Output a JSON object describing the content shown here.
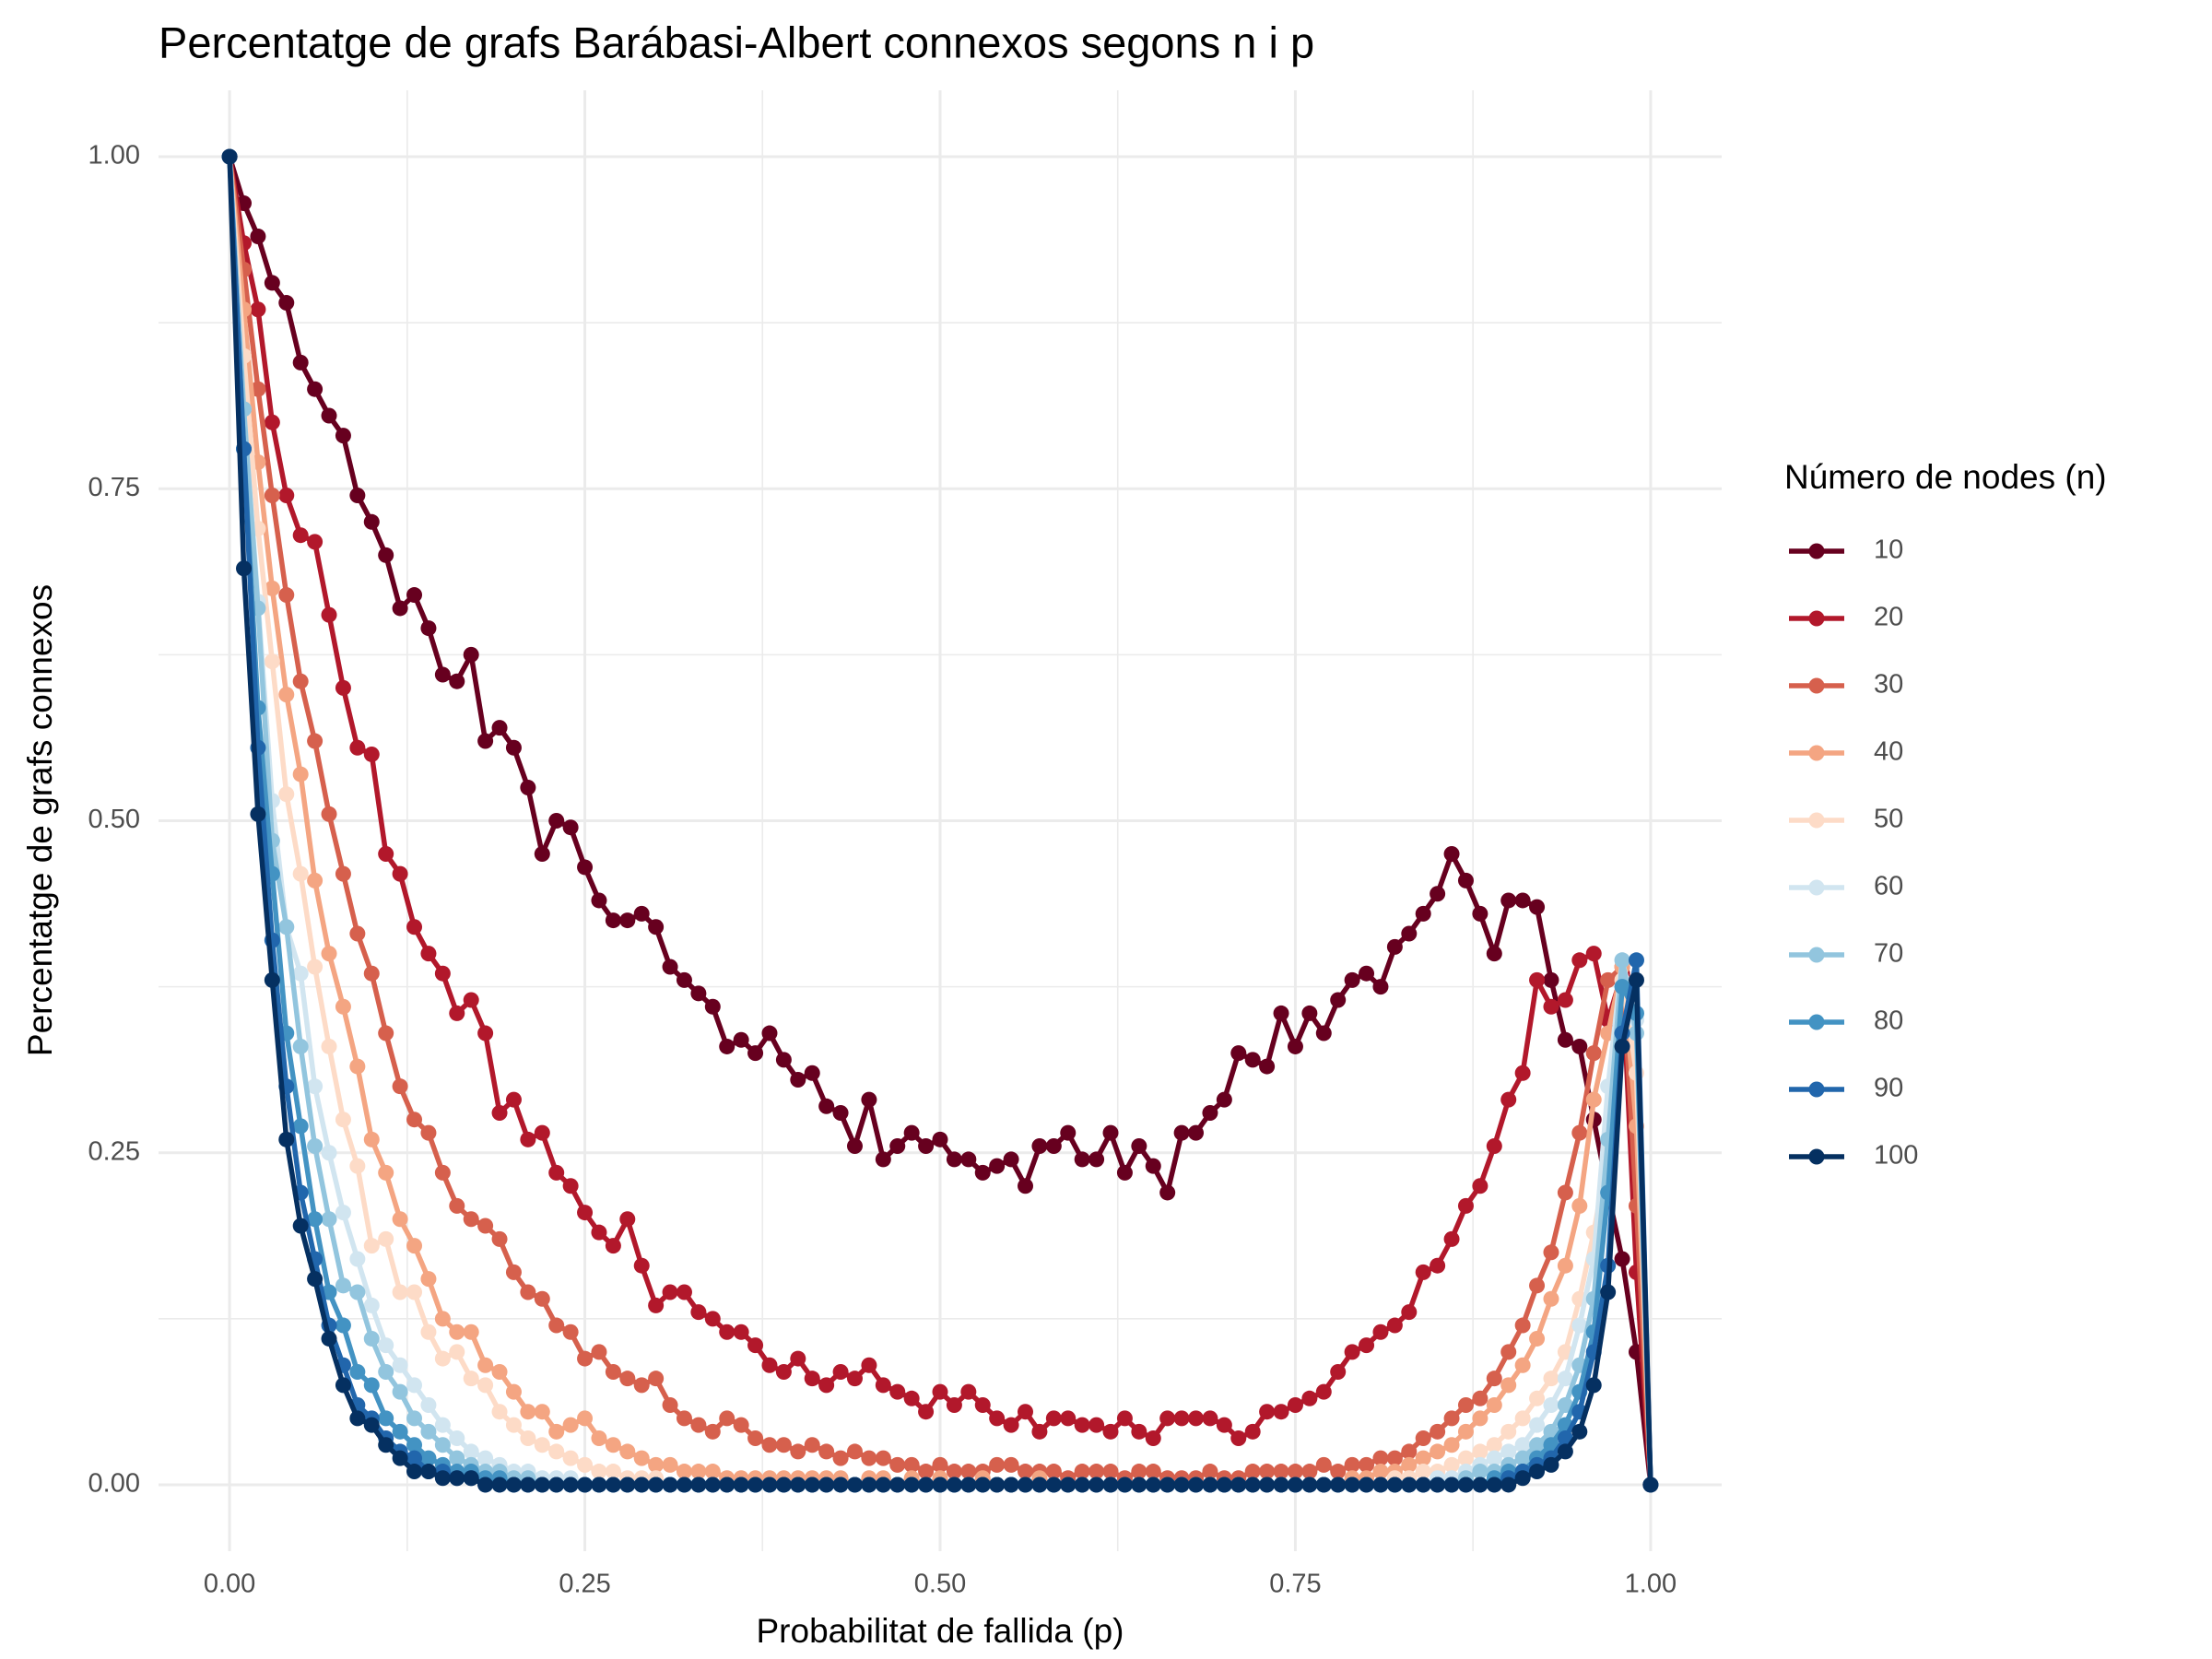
{
  "chart_data": {
    "type": "line",
    "title": "Percentatge de grafs Barábasi-Albert connexos segons n i p",
    "x_label": "Probabilitat de fallida (p)",
    "y_label": "Percentatge de grafs connexos",
    "legend_title": "Número de nodes (n)",
    "legend_position": "right",
    "grid": true,
    "xlim": [
      -0.05,
      1.05
    ],
    "ylim": [
      -0.05,
      1.05
    ],
    "xticks": [
      {
        "value": 0,
        "label": "0.00"
      },
      {
        "value": 0.25,
        "label": "0.25"
      },
      {
        "value": 0.5,
        "label": "0.50"
      },
      {
        "value": 0.75,
        "label": "0.75"
      },
      {
        "value": 1,
        "label": "1.00"
      }
    ],
    "yticks": [
      {
        "value": 0,
        "label": "0.00"
      },
      {
        "value": 0.25,
        "label": "0.25"
      },
      {
        "value": 0.5,
        "label": "0.50"
      },
      {
        "value": 0.75,
        "label": "0.75"
      },
      {
        "value": 1,
        "label": "1.00"
      }
    ],
    "xminor": [
      0.125,
      0.375,
      0.625,
      0.875
    ],
    "yminor": [
      0.125,
      0.375,
      0.625,
      0.875
    ],
    "x": [
      0,
      0.01,
      0.02,
      0.03,
      0.04,
      0.05,
      0.06,
      0.07,
      0.08,
      0.09,
      0.1,
      0.11,
      0.12,
      0.13,
      0.14,
      0.15,
      0.16,
      0.17,
      0.18,
      0.19,
      0.2,
      0.21,
      0.22,
      0.23,
      0.24,
      0.25,
      0.26,
      0.27,
      0.28,
      0.29,
      0.3,
      0.31,
      0.32,
      0.33,
      0.34,
      0.35,
      0.36,
      0.37,
      0.38,
      0.39,
      0.4,
      0.41,
      0.42,
      0.43,
      0.44,
      0.45,
      0.46,
      0.47,
      0.48,
      0.49,
      0.5,
      0.51,
      0.52,
      0.53,
      0.54,
      0.55,
      0.56,
      0.57,
      0.58,
      0.59,
      0.6,
      0.61,
      0.62,
      0.63,
      0.64,
      0.65,
      0.66,
      0.67,
      0.68,
      0.69,
      0.7,
      0.71,
      0.72,
      0.73,
      0.74,
      0.75,
      0.76,
      0.77,
      0.78,
      0.79,
      0.8,
      0.81,
      0.82,
      0.83,
      0.84,
      0.85,
      0.86,
      0.87,
      0.88,
      0.89,
      0.9,
      0.91,
      0.92,
      0.93,
      0.94,
      0.95,
      0.96,
      0.97,
      0.98,
      0.99,
      1
    ],
    "series": [
      {
        "name": "10",
        "color": "#67001f",
        "values": [
          1,
          0.965,
          0.94,
          0.905,
          0.89,
          0.845,
          0.825,
          0.805,
          0.79,
          0.745,
          0.725,
          0.7,
          0.66,
          0.67,
          0.645,
          0.61,
          0.605,
          0.625,
          0.56,
          0.57,
          0.555,
          0.525,
          0.475,
          0.5,
          0.495,
          0.465,
          0.44,
          0.425,
          0.425,
          0.43,
          0.42,
          0.39,
          0.38,
          0.37,
          0.36,
          0.33,
          0.335,
          0.325,
          0.34,
          0.32,
          0.305,
          0.31,
          0.285,
          0.28,
          0.255,
          0.29,
          0.245,
          0.255,
          0.265,
          0.255,
          0.26,
          0.245,
          0.245,
          0.235,
          0.24,
          0.245,
          0.225,
          0.255,
          0.255,
          0.265,
          0.245,
          0.245,
          0.265,
          0.235,
          0.255,
          0.24,
          0.22,
          0.265,
          0.265,
          0.28,
          0.29,
          0.325,
          0.32,
          0.315,
          0.355,
          0.33,
          0.355,
          0.34,
          0.365,
          0.38,
          0.385,
          0.375,
          0.405,
          0.415,
          0.43,
          0.445,
          0.475,
          0.455,
          0.43,
          0.4,
          0.44,
          0.44,
          0.435,
          0.38,
          0.335,
          0.33,
          0.275,
          0.22,
          0.17,
          0.1,
          0
        ]
      },
      {
        "name": "20",
        "color": "#b2182b",
        "values": [
          1,
          0.935,
          0.885,
          0.8,
          0.745,
          0.715,
          0.71,
          0.655,
          0.6,
          0.555,
          0.55,
          0.475,
          0.46,
          0.42,
          0.4,
          0.385,
          0.355,
          0.365,
          0.34,
          0.28,
          0.29,
          0.26,
          0.265,
          0.235,
          0.225,
          0.205,
          0.19,
          0.18,
          0.2,
          0.165,
          0.135,
          0.145,
          0.145,
          0.13,
          0.125,
          0.115,
          0.115,
          0.105,
          0.09,
          0.085,
          0.095,
          0.08,
          0.075,
          0.085,
          0.08,
          0.09,
          0.075,
          0.07,
          0.065,
          0.055,
          0.07,
          0.06,
          0.07,
          0.06,
          0.05,
          0.045,
          0.055,
          0.04,
          0.05,
          0.05,
          0.045,
          0.045,
          0.04,
          0.05,
          0.04,
          0.035,
          0.05,
          0.05,
          0.05,
          0.05,
          0.045,
          0.035,
          0.04,
          0.055,
          0.055,
          0.06,
          0.065,
          0.07,
          0.085,
          0.1,
          0.105,
          0.115,
          0.12,
          0.13,
          0.16,
          0.165,
          0.185,
          0.21,
          0.225,
          0.255,
          0.29,
          0.31,
          0.38,
          0.36,
          0.365,
          0.395,
          0.4,
          0.35,
          0.385,
          0.16,
          0
        ]
      },
      {
        "name": "30",
        "color": "#d6604d",
        "values": [
          1,
          0.915,
          0.825,
          0.745,
          0.67,
          0.605,
          0.56,
          0.505,
          0.46,
          0.415,
          0.385,
          0.34,
          0.3,
          0.275,
          0.265,
          0.235,
          0.21,
          0.2,
          0.195,
          0.185,
          0.16,
          0.145,
          0.14,
          0.12,
          0.115,
          0.095,
          0.1,
          0.085,
          0.08,
          0.075,
          0.08,
          0.06,
          0.05,
          0.045,
          0.04,
          0.05,
          0.045,
          0.035,
          0.03,
          0.03,
          0.025,
          0.03,
          0.025,
          0.02,
          0.025,
          0.02,
          0.02,
          0.015,
          0.015,
          0.01,
          0.015,
          0.01,
          0.01,
          0.01,
          0.015,
          0.015,
          0.01,
          0.01,
          0.01,
          0.005,
          0.01,
          0.01,
          0.01,
          0.005,
          0.01,
          0.01,
          0.005,
          0.005,
          0.005,
          0.01,
          0.005,
          0.005,
          0.01,
          0.01,
          0.01,
          0.01,
          0.01,
          0.015,
          0.01,
          0.015,
          0.015,
          0.02,
          0.02,
          0.025,
          0.035,
          0.04,
          0.05,
          0.06,
          0.065,
          0.08,
          0.1,
          0.12,
          0.15,
          0.175,
          0.22,
          0.265,
          0.325,
          0.38,
          0.39,
          0.21,
          0
        ]
      },
      {
        "name": "40",
        "color": "#f4a582",
        "values": [
          1,
          0.885,
          0.77,
          0.675,
          0.595,
          0.535,
          0.455,
          0.4,
          0.36,
          0.315,
          0.26,
          0.235,
          0.2,
          0.18,
          0.155,
          0.125,
          0.115,
          0.115,
          0.09,
          0.085,
          0.07,
          0.055,
          0.055,
          0.04,
          0.045,
          0.05,
          0.035,
          0.03,
          0.025,
          0.02,
          0.015,
          0.015,
          0.01,
          0.01,
          0.01,
          0.005,
          0.005,
          0.005,
          0.005,
          0.005,
          0.005,
          0.005,
          0.005,
          0.005,
          0,
          0.005,
          0.005,
          0,
          0.005,
          0,
          0.005,
          0,
          0,
          0.005,
          0,
          0,
          0,
          0.005,
          0,
          0,
          0,
          0,
          0,
          0,
          0,
          0,
          0,
          0,
          0,
          0,
          0,
          0,
          0,
          0,
          0,
          0,
          0,
          0,
          0,
          0.005,
          0.005,
          0.01,
          0.01,
          0.015,
          0.02,
          0.025,
          0.03,
          0.04,
          0.05,
          0.06,
          0.075,
          0.09,
          0.11,
          0.14,
          0.165,
          0.21,
          0.29,
          0.34,
          0.39,
          0.27,
          0
        ]
      },
      {
        "name": "50",
        "color": "#fddbc7",
        "values": [
          1,
          0.85,
          0.72,
          0.62,
          0.52,
          0.46,
          0.39,
          0.33,
          0.275,
          0.24,
          0.18,
          0.185,
          0.145,
          0.145,
          0.115,
          0.095,
          0.1,
          0.08,
          0.075,
          0.055,
          0.045,
          0.035,
          0.03,
          0.025,
          0.02,
          0.015,
          0.01,
          0.01,
          0.005,
          0.005,
          0.005,
          0,
          0,
          0,
          0,
          0,
          0,
          0,
          0,
          0,
          0,
          0,
          0,
          0,
          0,
          0,
          0,
          0,
          0,
          0,
          0,
          0,
          0,
          0,
          0,
          0,
          0,
          0,
          0,
          0,
          0,
          0,
          0,
          0,
          0,
          0,
          0,
          0,
          0,
          0,
          0,
          0,
          0,
          0,
          0,
          0,
          0,
          0,
          0,
          0,
          0,
          0,
          0.005,
          0.005,
          0.01,
          0.01,
          0.015,
          0.02,
          0.025,
          0.03,
          0.04,
          0.05,
          0.065,
          0.08,
          0.1,
          0.14,
          0.19,
          0.25,
          0.38,
          0.31,
          0
        ]
      },
      {
        "name": "60",
        "color": "#d1e5f0",
        "values": [
          1,
          0.81,
          0.665,
          0.515,
          0.42,
          0.385,
          0.3,
          0.25,
          0.205,
          0.17,
          0.135,
          0.105,
          0.09,
          0.075,
          0.06,
          0.045,
          0.035,
          0.025,
          0.02,
          0.015,
          0.01,
          0.01,
          0.005,
          0.005,
          0.005,
          0,
          0,
          0,
          0,
          0,
          0,
          0,
          0,
          0,
          0,
          0,
          0,
          0,
          0,
          0,
          0,
          0,
          0,
          0,
          0,
          0,
          0,
          0,
          0,
          0,
          0,
          0,
          0,
          0,
          0,
          0,
          0,
          0,
          0,
          0,
          0,
          0,
          0,
          0,
          0,
          0,
          0,
          0,
          0,
          0,
          0,
          0,
          0,
          0,
          0,
          0,
          0,
          0,
          0,
          0,
          0,
          0,
          0,
          0,
          0,
          0.005,
          0.005,
          0.01,
          0.015,
          0.02,
          0.025,
          0.03,
          0.045,
          0.06,
          0.08,
          0.12,
          0.17,
          0.3,
          0.395,
          0.35,
          0
        ]
      },
      {
        "name": "70",
        "color": "#92c5de",
        "values": [
          1,
          0.81,
          0.66,
          0.485,
          0.42,
          0.33,
          0.255,
          0.2,
          0.15,
          0.145,
          0.11,
          0.085,
          0.07,
          0.05,
          0.04,
          0.03,
          0.02,
          0.015,
          0.01,
          0.01,
          0.005,
          0.005,
          0,
          0,
          0,
          0,
          0,
          0,
          0,
          0,
          0,
          0,
          0,
          0,
          0,
          0,
          0,
          0,
          0,
          0,
          0,
          0,
          0,
          0,
          0,
          0,
          0,
          0,
          0,
          0,
          0,
          0,
          0,
          0,
          0,
          0,
          0,
          0,
          0,
          0,
          0,
          0,
          0,
          0,
          0,
          0,
          0,
          0,
          0,
          0,
          0,
          0,
          0,
          0,
          0,
          0,
          0,
          0,
          0,
          0,
          0,
          0,
          0,
          0,
          0,
          0,
          0,
          0.005,
          0.01,
          0.01,
          0.015,
          0.02,
          0.03,
          0.04,
          0.06,
          0.09,
          0.14,
          0.26,
          0.395,
          0.34,
          0
        ]
      },
      {
        "name": "80",
        "color": "#4393c3",
        "values": [
          1,
          0.78,
          0.585,
          0.46,
          0.34,
          0.27,
          0.2,
          0.145,
          0.12,
          0.085,
          0.075,
          0.05,
          0.04,
          0.03,
          0.02,
          0.015,
          0.01,
          0.01,
          0.005,
          0.005,
          0,
          0,
          0,
          0,
          0,
          0,
          0,
          0,
          0,
          0,
          0,
          0,
          0,
          0,
          0,
          0,
          0,
          0,
          0,
          0,
          0,
          0,
          0,
          0,
          0,
          0,
          0,
          0,
          0,
          0,
          0,
          0,
          0,
          0,
          0,
          0,
          0,
          0,
          0,
          0,
          0,
          0,
          0,
          0,
          0,
          0,
          0,
          0,
          0,
          0,
          0,
          0,
          0,
          0,
          0,
          0,
          0,
          0,
          0,
          0,
          0,
          0,
          0,
          0,
          0,
          0,
          0,
          0,
          0,
          0.005,
          0.01,
          0.01,
          0.02,
          0.03,
          0.045,
          0.07,
          0.115,
          0.22,
          0.375,
          0.355,
          0
        ]
      },
      {
        "name": "90",
        "color": "#2166ac",
        "values": [
          1,
          0.78,
          0.555,
          0.41,
          0.3,
          0.22,
          0.17,
          0.12,
          0.09,
          0.06,
          0.05,
          0.035,
          0.025,
          0.02,
          0.01,
          0.01,
          0.005,
          0.005,
          0,
          0,
          0,
          0,
          0,
          0,
          0,
          0,
          0,
          0,
          0,
          0,
          0,
          0,
          0,
          0,
          0,
          0,
          0,
          0,
          0,
          0,
          0,
          0,
          0,
          0,
          0,
          0,
          0,
          0,
          0,
          0,
          0,
          0,
          0,
          0,
          0,
          0,
          0,
          0,
          0,
          0,
          0,
          0,
          0,
          0,
          0,
          0,
          0,
          0,
          0,
          0,
          0,
          0,
          0,
          0,
          0,
          0,
          0,
          0,
          0,
          0,
          0,
          0,
          0,
          0,
          0,
          0,
          0,
          0,
          0,
          0,
          0.005,
          0.01,
          0.015,
          0.02,
          0.035,
          0.055,
          0.1,
          0.165,
          0.34,
          0.395,
          0
        ]
      },
      {
        "name": "100",
        "color": "#053061",
        "values": [
          1,
          0.69,
          0.505,
          0.38,
          0.26,
          0.195,
          0.155,
          0.11,
          0.075,
          0.05,
          0.045,
          0.03,
          0.02,
          0.01,
          0.01,
          0.005,
          0.005,
          0.005,
          0,
          0,
          0,
          0,
          0,
          0,
          0,
          0,
          0,
          0,
          0,
          0,
          0,
          0,
          0,
          0,
          0,
          0,
          0,
          0,
          0,
          0,
          0,
          0,
          0,
          0,
          0,
          0,
          0,
          0,
          0,
          0,
          0,
          0,
          0,
          0,
          0,
          0,
          0,
          0,
          0,
          0,
          0,
          0,
          0,
          0,
          0,
          0,
          0,
          0,
          0,
          0,
          0,
          0,
          0,
          0,
          0,
          0,
          0,
          0,
          0,
          0,
          0,
          0,
          0,
          0,
          0,
          0,
          0,
          0,
          0,
          0,
          0,
          0.005,
          0.01,
          0.015,
          0.025,
          0.04,
          0.075,
          0.145,
          0.33,
          0.38,
          0
        ]
      }
    ]
  }
}
